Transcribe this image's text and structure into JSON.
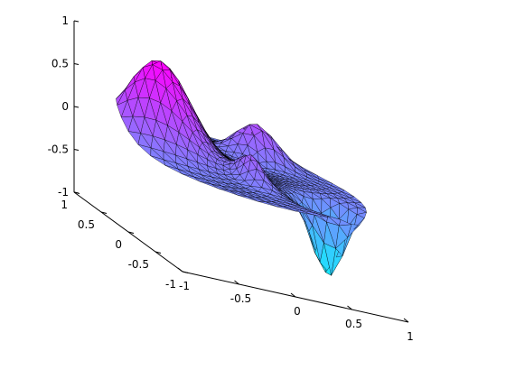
{
  "chart_data": {
    "type": "surface",
    "title": "",
    "xlabel": "",
    "ylabel": "",
    "zlabel": "",
    "xlim": [
      -1,
      1
    ],
    "ylim": [
      -1,
      1
    ],
    "zlim": [
      -1,
      1
    ],
    "grid": false,
    "colormap": "cool",
    "colormap_colors": [
      "#00ffff",
      "#ff00ff"
    ],
    "domain": "unit disk",
    "surface": {
      "peaks": [
        {
          "x": -0.6,
          "y": 0.25,
          "z": 1.0
        },
        {
          "x": 0.4,
          "y": 0.55,
          "z": 0.42
        },
        {
          "x": -0.05,
          "y": -0.3,
          "z": 0.3
        }
      ],
      "troughs": [
        {
          "x": 0.5,
          "y": -0.55,
          "z": -0.85
        }
      ]
    },
    "ticks": {
      "z": [
        {
          "value": 1,
          "label": "1"
        },
        {
          "value": 0.5,
          "label": "0.5"
        },
        {
          "value": 0,
          "label": "0"
        },
        {
          "value": -0.5,
          "label": "-0.5"
        },
        {
          "value": -1,
          "label": "-1"
        }
      ],
      "y": [
        {
          "value": 1,
          "label": "1"
        },
        {
          "value": 0.5,
          "label": "0.5"
        },
        {
          "value": 0,
          "label": "0"
        },
        {
          "value": -0.5,
          "label": "-0.5"
        },
        {
          "value": -1,
          "label": "-1"
        }
      ],
      "x": [
        {
          "value": -1,
          "label": "-1"
        },
        {
          "value": -0.5,
          "label": "-0.5"
        },
        {
          "value": 0,
          "label": "0"
        },
        {
          "value": 0.5,
          "label": "0.5"
        },
        {
          "value": 1,
          "label": "1"
        }
      ]
    }
  }
}
